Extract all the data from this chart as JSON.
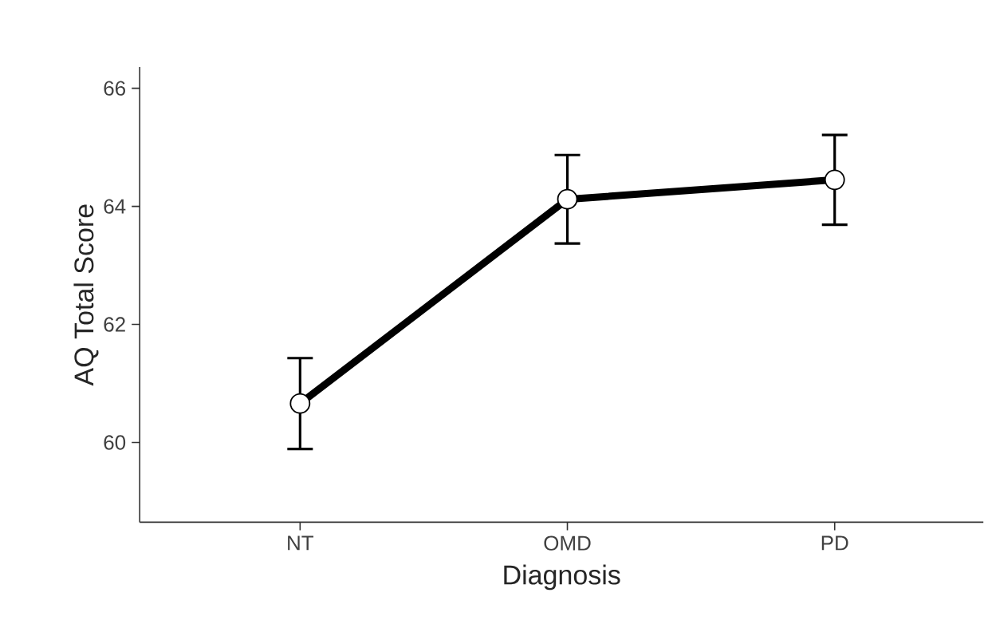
{
  "chart_data": {
    "type": "line",
    "xlabel": "Diagnosis",
    "ylabel": "AQ Total Score",
    "categories": [
      "NT",
      "OMD",
      "PD"
    ],
    "values": [
      60.66,
      64.12,
      64.45
    ],
    "errors": [
      0.77,
      0.75,
      0.76
    ],
    "color": "#000000",
    "marker": "circle",
    "line_style": "solid",
    "ylim": [
      58.65,
      66.36
    ],
    "yticks": [
      60,
      62,
      64,
      66
    ]
  }
}
